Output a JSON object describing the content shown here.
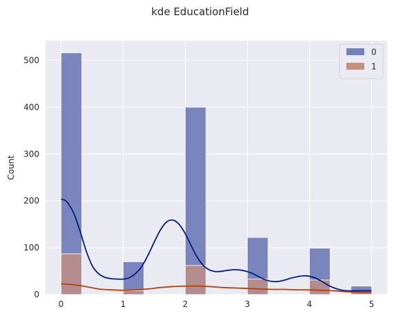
{
  "chart_data": {
    "type": "bar",
    "title": "kde EducationField",
    "xlabel": "",
    "ylabel": "Count",
    "xlim": [
      -0.25,
      5.25
    ],
    "ylim": [
      0,
      542
    ],
    "xticks": [
      0,
      1,
      2,
      3,
      4,
      5
    ],
    "yticks": [
      0,
      100,
      200,
      300,
      400,
      500
    ],
    "grid": true,
    "legend": {
      "title": "",
      "placement": "top-right",
      "entries": [
        {
          "label": "0",
          "color": "#7580b9"
        },
        {
          "label": "1",
          "color": "#c5907f"
        }
      ]
    },
    "bin_edges": [
      0,
      0.3333,
      0.6667,
      1,
      1.3333,
      1.6667,
      2,
      2.3333,
      2.6667,
      3,
      3.3333,
      3.6667,
      4,
      4.3333,
      4.6667,
      5
    ],
    "series": [
      {
        "name": "0",
        "bar_color": "#7580b9",
        "line_color": "#001c7f",
        "values": [
          516,
          0,
          0,
          70,
          0,
          0,
          400,
          0,
          0,
          122,
          0,
          0,
          99,
          0,
          18
        ],
        "kde": [
          [
            0,
            203
          ],
          [
            0.05,
            202
          ],
          [
            0.1,
            197
          ],
          [
            0.2,
            175
          ],
          [
            0.3,
            138
          ],
          [
            0.4,
            95
          ],
          [
            0.5,
            62
          ],
          [
            0.6,
            45
          ],
          [
            0.7,
            37
          ],
          [
            0.8,
            34
          ],
          [
            0.9,
            33
          ],
          [
            1.0,
            33
          ],
          [
            1.1,
            36
          ],
          [
            1.2,
            45
          ],
          [
            1.3,
            60
          ],
          [
            1.4,
            84
          ],
          [
            1.5,
            112
          ],
          [
            1.6,
            138
          ],
          [
            1.7,
            155
          ],
          [
            1.8,
            159
          ],
          [
            1.9,
            150
          ],
          [
            2.0,
            130
          ],
          [
            2.1,
            103
          ],
          [
            2.2,
            78
          ],
          [
            2.3,
            61
          ],
          [
            2.4,
            52
          ],
          [
            2.5,
            49
          ],
          [
            2.6,
            50
          ],
          [
            2.7,
            52
          ],
          [
            2.8,
            53
          ],
          [
            2.9,
            52
          ],
          [
            3.0,
            49
          ],
          [
            3.1,
            44
          ],
          [
            3.2,
            37
          ],
          [
            3.3,
            31
          ],
          [
            3.4,
            28
          ],
          [
            3.5,
            28
          ],
          [
            3.6,
            31
          ],
          [
            3.7,
            35
          ],
          [
            3.8,
            38
          ],
          [
            3.9,
            40
          ],
          [
            4.0,
            39
          ],
          [
            4.1,
            35
          ],
          [
            4.2,
            28
          ],
          [
            4.3,
            20
          ],
          [
            4.4,
            14
          ],
          [
            4.5,
            10
          ],
          [
            4.6,
            8
          ],
          [
            4.7,
            8
          ],
          [
            4.8,
            8
          ],
          [
            4.9,
            8
          ],
          [
            5.0,
            8
          ]
        ]
      },
      {
        "name": "1",
        "bar_color": "#c5907f",
        "line_color": "#b1400d",
        "values": [
          87,
          0,
          0,
          8,
          0,
          0,
          62,
          0,
          0,
          33,
          0,
          0,
          31,
          0,
          5
        ],
        "kde": [
          [
            0,
            23
          ],
          [
            0.2,
            21
          ],
          [
            0.4,
            17
          ],
          [
            0.6,
            12
          ],
          [
            0.8,
            10
          ],
          [
            1.0,
            9
          ],
          [
            1.2,
            10
          ],
          [
            1.4,
            12
          ],
          [
            1.6,
            15
          ],
          [
            1.8,
            17
          ],
          [
            2.0,
            18
          ],
          [
            2.2,
            18
          ],
          [
            2.4,
            17
          ],
          [
            2.6,
            15
          ],
          [
            2.8,
            14
          ],
          [
            3.0,
            13
          ],
          [
            3.2,
            12
          ],
          [
            3.4,
            11
          ],
          [
            3.6,
            11
          ],
          [
            3.8,
            10
          ],
          [
            4.0,
            10
          ],
          [
            4.2,
            9
          ],
          [
            4.4,
            8
          ],
          [
            4.6,
            6
          ],
          [
            4.8,
            5
          ],
          [
            5.0,
            4
          ]
        ]
      }
    ]
  }
}
